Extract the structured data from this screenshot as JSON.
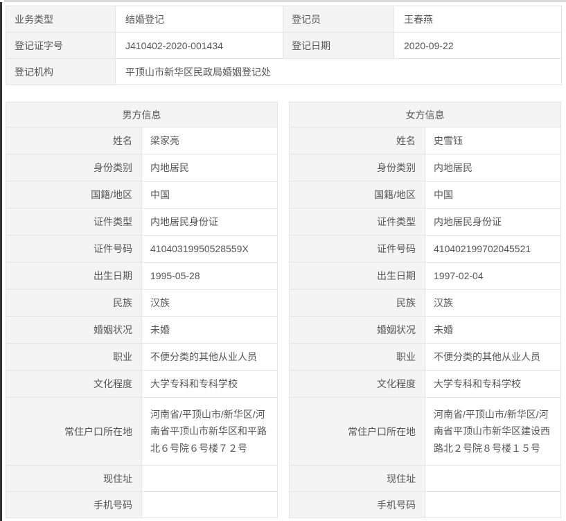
{
  "colors": {
    "label_bg": "#f4f4f4",
    "border": "#e3e3e3",
    "text": "#565656",
    "left_edge": "#333333",
    "top_edge": "#d6d6d6"
  },
  "registry": {
    "row1": {
      "label1": "业务类型",
      "value1": "结婚登记",
      "label2": "登记员",
      "value2": "王春燕"
    },
    "row2": {
      "label1": "登记证字号",
      "value1": "J410402-2020-001434",
      "label2": "登记日期",
      "value2": "2020-09-22"
    },
    "row3": {
      "label": "登记机构",
      "value": "平顶山市新华区民政局婚姻登记处"
    }
  },
  "parties": [
    {
      "title": "男方信息",
      "fields": [
        {
          "label": "姓名",
          "value": "梁家亮"
        },
        {
          "label": "身份类别",
          "value": "内地居民"
        },
        {
          "label": "国籍/地区",
          "value": "中国"
        },
        {
          "label": "证件类型",
          "value": "内地居民身份证"
        },
        {
          "label": "证件号码",
          "value": "41040319950528559X"
        },
        {
          "label": "出生日期",
          "value": "1995-05-28"
        },
        {
          "label": "民族",
          "value": "汉族"
        },
        {
          "label": "婚姻状况",
          "value": "未婚"
        },
        {
          "label": "职业",
          "value": "不便分类的其他从业人员"
        },
        {
          "label": "文化程度",
          "value": "大学专科和专科学校"
        },
        {
          "label": "常住户口所在地",
          "value": "河南省/平顶山市/新华区/河南省平顶山市新华区和平路北６号院６号楼７２号"
        },
        {
          "label": "现住址",
          "value": ""
        },
        {
          "label": "手机号码",
          "value": ""
        }
      ]
    },
    {
      "title": "女方信息",
      "fields": [
        {
          "label": "姓名",
          "value": "史雪钰"
        },
        {
          "label": "身份类别",
          "value": "内地居民"
        },
        {
          "label": "国籍/地区",
          "value": "中国"
        },
        {
          "label": "证件类型",
          "value": "内地居民身份证"
        },
        {
          "label": "证件号码",
          "value": "410402199702045521"
        },
        {
          "label": "出生日期",
          "value": "1997-02-04"
        },
        {
          "label": "民族",
          "value": "汉族"
        },
        {
          "label": "婚姻状况",
          "value": "未婚"
        },
        {
          "label": "职业",
          "value": "不便分类的其他从业人员"
        },
        {
          "label": "文化程度",
          "value": "大学专科和专科学校"
        },
        {
          "label": "常住户口所在地",
          "value": "河南省/平顶山市/新华区/河南省平顶山市新华区建设西路北２号院８号楼１５号"
        },
        {
          "label": "现住址",
          "value": ""
        },
        {
          "label": "手机号码",
          "value": ""
        }
      ]
    }
  ]
}
